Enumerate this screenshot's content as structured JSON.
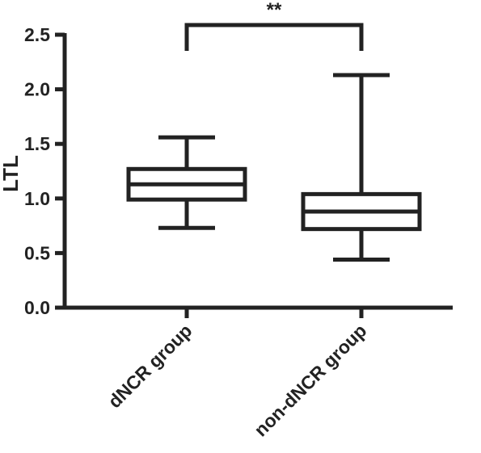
{
  "chart_data": {
    "type": "box",
    "title": "",
    "xlabel": "",
    "ylabel": "LTL",
    "ylim": [
      0,
      2.5
    ],
    "yticks": [
      "0.0",
      "0.5",
      "1.0",
      "1.5",
      "2.0",
      "2.5"
    ],
    "ytick_values": [
      0,
      0.5,
      1.0,
      1.5,
      2.0,
      2.5
    ],
    "categories": [
      "dNCR group",
      "non-dNCR group"
    ],
    "boxes": [
      {
        "category": "dNCR group",
        "min": 0.73,
        "q1": 0.99,
        "median": 1.13,
        "q3": 1.27,
        "max": 1.56
      },
      {
        "category": "non-dNCR group",
        "min": 0.44,
        "q1": 0.72,
        "median": 0.88,
        "q3": 1.04,
        "max": 2.13
      }
    ],
    "significance": {
      "label": "**",
      "from": "dNCR group",
      "to": "non-dNCR group",
      "level": 2.5
    },
    "colors": {
      "stroke": "#222222",
      "fill": "#ffffff"
    },
    "grid": false,
    "legend": "none"
  }
}
